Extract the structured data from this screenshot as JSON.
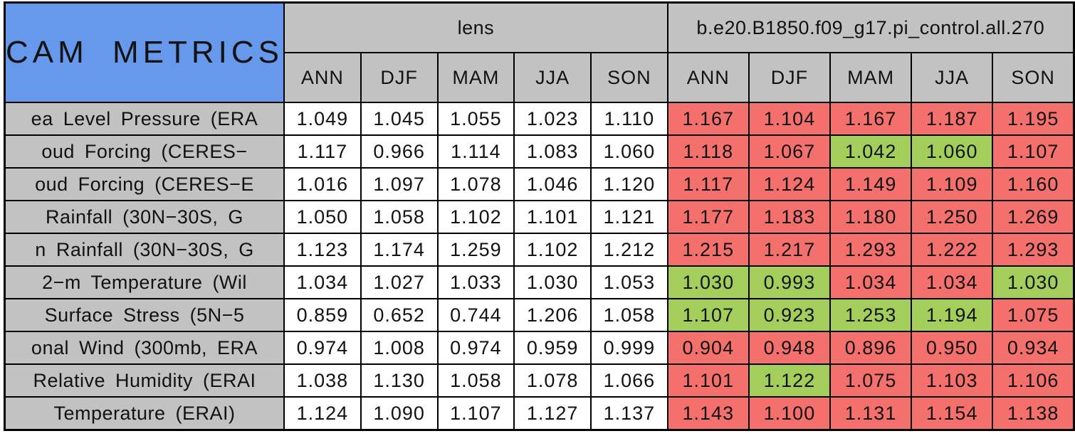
{
  "colors": {
    "cell_worse_red": "#F4706D",
    "cell_better_green": "#A3CE5C",
    "title_blue": "#6699EB",
    "header_gray": "#C2C2C2",
    "border_black": "#000000"
  },
  "chart_data": {
    "type": "table",
    "title": "CAM METRICS",
    "column_groups": [
      {
        "label": "lens",
        "seasons": [
          "ANN",
          "DJF",
          "MAM",
          "JJA",
          "SON"
        ]
      },
      {
        "label": "b.e20.B1850.f09_g17.pi_control.all.270",
        "seasons": [
          "ANN",
          "DJF",
          "MAM",
          "JJA",
          "SON"
        ]
      }
    ],
    "flag_legend": {
      "better": "green cell",
      "worse": "red cell"
    },
    "rows": [
      {
        "label": "ea Level Pressure (ERA",
        "lens": [
          "1.049",
          "1.045",
          "1.055",
          "1.023",
          "1.110"
        ],
        "control": [
          "1.167",
          "1.104",
          "1.167",
          "1.187",
          "1.195"
        ],
        "control_flags": [
          "worse",
          "worse",
          "worse",
          "worse",
          "worse"
        ]
      },
      {
        "label": "oud Forcing (CERES−",
        "lens": [
          "1.117",
          "0.966",
          "1.114",
          "1.083",
          "1.060"
        ],
        "control": [
          "1.118",
          "1.067",
          "1.042",
          "1.060",
          "1.107"
        ],
        "control_flags": [
          "worse",
          "worse",
          "better",
          "better",
          "worse"
        ]
      },
      {
        "label": "oud Forcing (CERES−E",
        "lens": [
          "1.016",
          "1.097",
          "1.078",
          "1.046",
          "1.120"
        ],
        "control": [
          "1.117",
          "1.124",
          "1.149",
          "1.109",
          "1.160"
        ],
        "control_flags": [
          "worse",
          "worse",
          "worse",
          "worse",
          "worse"
        ]
      },
      {
        "label": "Rainfall (30N−30S, G",
        "lens": [
          "1.050",
          "1.058",
          "1.102",
          "1.101",
          "1.121"
        ],
        "control": [
          "1.177",
          "1.183",
          "1.180",
          "1.250",
          "1.269"
        ],
        "control_flags": [
          "worse",
          "worse",
          "worse",
          "worse",
          "worse"
        ]
      },
      {
        "label": "n Rainfall (30N−30S, G",
        "lens": [
          "1.123",
          "1.174",
          "1.259",
          "1.102",
          "1.212"
        ],
        "control": [
          "1.215",
          "1.217",
          "1.293",
          "1.222",
          "1.293"
        ],
        "control_flags": [
          "worse",
          "worse",
          "worse",
          "worse",
          "worse"
        ]
      },
      {
        "label": "2−m Temperature (Wil",
        "lens": [
          "1.034",
          "1.027",
          "1.033",
          "1.030",
          "1.053"
        ],
        "control": [
          "1.030",
          "0.993",
          "1.034",
          "1.034",
          "1.030"
        ],
        "control_flags": [
          "better",
          "better",
          "worse",
          "worse",
          "better"
        ]
      },
      {
        "label": "Surface Stress (5N−5",
        "lens": [
          "0.859",
          "0.652",
          "0.744",
          "1.206",
          "1.058"
        ],
        "control": [
          "1.107",
          "0.923",
          "1.253",
          "1.194",
          "1.075"
        ],
        "control_flags": [
          "better",
          "better",
          "better",
          "better",
          "worse"
        ]
      },
      {
        "label": "onal Wind (300mb, ERA",
        "lens": [
          "0.974",
          "1.008",
          "0.974",
          "0.959",
          "0.999"
        ],
        "control": [
          "0.904",
          "0.948",
          "0.896",
          "0.950",
          "0.934"
        ],
        "control_flags": [
          "worse",
          "worse",
          "worse",
          "worse",
          "worse"
        ]
      },
      {
        "label": "Relative Humidity (ERAI",
        "lens": [
          "1.038",
          "1.130",
          "1.058",
          "1.078",
          "1.066"
        ],
        "control": [
          "1.101",
          "1.122",
          "1.075",
          "1.103",
          "1.106"
        ],
        "control_flags": [
          "worse",
          "better",
          "worse",
          "worse",
          "worse"
        ]
      },
      {
        "label": "Temperature (ERAI)",
        "lens": [
          "1.124",
          "1.090",
          "1.107",
          "1.127",
          "1.137"
        ],
        "control": [
          "1.143",
          "1.100",
          "1.131",
          "1.154",
          "1.138"
        ],
        "control_flags": [
          "worse",
          "worse",
          "worse",
          "worse",
          "worse"
        ]
      }
    ]
  }
}
